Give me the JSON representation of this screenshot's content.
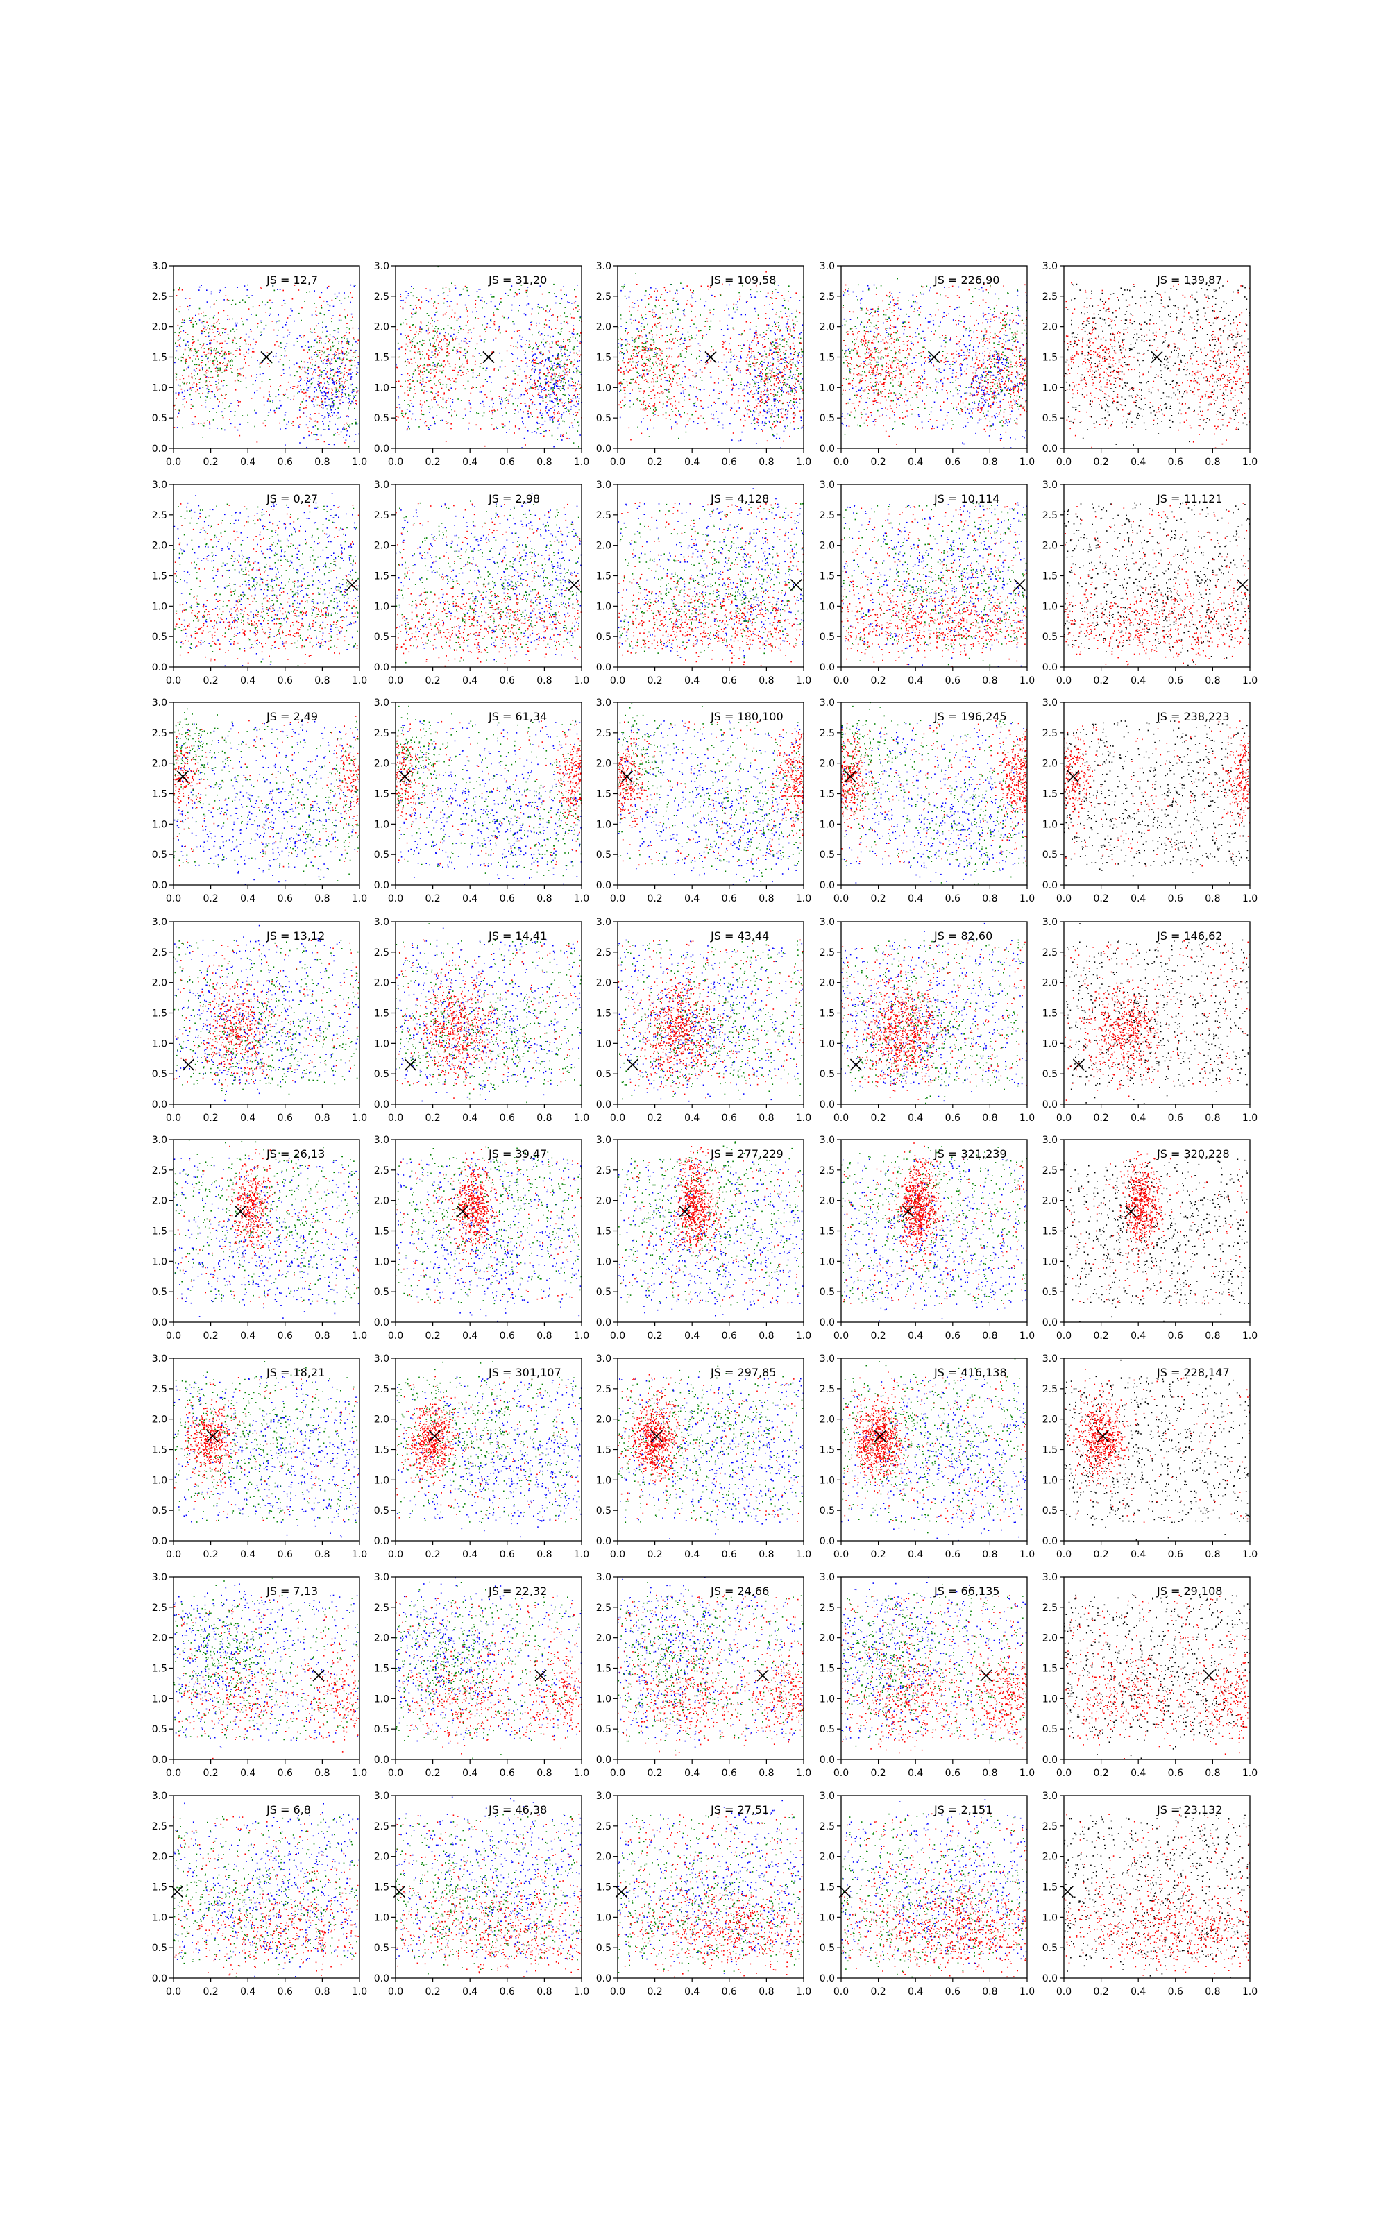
{
  "chart_data": {
    "type": "scatter",
    "layout": {
      "rows": 8,
      "cols": 5
    },
    "xlim": [
      0,
      1
    ],
    "ylim": [
      0,
      3
    ],
    "xticks": [
      "0.0",
      "0.2",
      "0.4",
      "0.6",
      "0.8",
      "1.0"
    ],
    "yticks": [
      "0.0",
      "0.5",
      "1.0",
      "1.5",
      "2.0",
      "2.5",
      "3.0"
    ],
    "colors": {
      "red": "#ff0000",
      "green": "#008000",
      "blue": "#0000ff",
      "black": "#000000"
    },
    "rows": [
      {
        "marker": [
          0.5,
          1.5
        ],
        "labels": [
          "JS = 12,7",
          "JS = 31,20",
          "JS = 109,58",
          "JS = 226,90",
          "JS = 139,87"
        ],
        "series": [
          {
            "color": "red",
            "clusters": [
              {
                "cx": 0.2,
                "cy": 1.4,
                "sx": 0.12,
                "sy": 0.45
              },
              {
                "cx": 0.85,
                "cy": 1.2,
                "sx": 0.12,
                "sy": 0.45
              }
            ],
            "uniform": 0.3
          },
          {
            "color": "green",
            "clusters": [
              {
                "cx": 0.18,
                "cy": 1.5,
                "sx": 0.13,
                "sy": 0.5
              },
              {
                "cx": 0.9,
                "cy": 1.3,
                "sx": 0.1,
                "sy": 0.5
              }
            ],
            "uniform": 0.3
          },
          {
            "color": "blue",
            "clusters": [
              {
                "cx": 0.85,
                "cy": 1.0,
                "sx": 0.12,
                "sy": 0.5
              }
            ],
            "uniform": 0.5
          }
        ]
      },
      {
        "marker": [
          0.96,
          1.35
        ],
        "labels": [
          "JS = 0,27",
          "JS = 2,98",
          "JS = 4,128",
          "JS = 10,114",
          "JS = 11,121"
        ],
        "series": [
          {
            "color": "red",
            "clusters": [
              {
                "cx": 0.5,
                "cy": 0.7,
                "sx": 0.35,
                "sy": 0.3
              }
            ],
            "uniform": 0.3
          },
          {
            "color": "green",
            "clusters": [
              {
                "cx": 0.6,
                "cy": 1.2,
                "sx": 0.3,
                "sy": 0.5
              }
            ],
            "uniform": 0.4
          },
          {
            "color": "blue",
            "clusters": [
              {
                "cx": 0.7,
                "cy": 1.4,
                "sx": 0.3,
                "sy": 0.6
              }
            ],
            "uniform": 0.5
          }
        ]
      },
      {
        "marker": [
          0.05,
          1.78
        ],
        "labels": [
          "JS = 2,49",
          "JS = 61,34",
          "JS = 180,100",
          "JS = 196,245",
          "JS = 238,223"
        ],
        "series": [
          {
            "color": "red",
            "clusters": [
              {
                "cx": 0.03,
                "cy": 1.75,
                "sx": 0.06,
                "sy": 0.35
              },
              {
                "cx": 0.97,
                "cy": 1.75,
                "sx": 0.06,
                "sy": 0.35
              }
            ],
            "uniform": 0.2
          },
          {
            "color": "green",
            "clusters": [
              {
                "cx": 0.1,
                "cy": 2.1,
                "sx": 0.1,
                "sy": 0.4
              },
              {
                "cx": 0.8,
                "cy": 1.0,
                "sx": 0.2,
                "sy": 0.5
              }
            ],
            "uniform": 0.4
          },
          {
            "color": "blue",
            "clusters": [
              {
                "cx": 0.55,
                "cy": 1.0,
                "sx": 0.25,
                "sy": 0.5
              }
            ],
            "uniform": 0.5
          }
        ]
      },
      {
        "marker": [
          0.08,
          0.65
        ],
        "labels": [
          "JS = 13,12",
          "JS = 14,41",
          "JS = 43,44",
          "JS = 82,60",
          "JS = 146,62"
        ],
        "series": [
          {
            "color": "red",
            "clusters": [
              {
                "cx": 0.33,
                "cy": 1.2,
                "sx": 0.1,
                "sy": 0.4
              }
            ],
            "uniform": 0.25
          },
          {
            "color": "green",
            "clusters": [
              {
                "cx": 0.45,
                "cy": 1.1,
                "sx": 0.25,
                "sy": 0.5
              }
            ],
            "uniform": 0.5
          },
          {
            "color": "blue",
            "clusters": [
              {
                "cx": 0.4,
                "cy": 1.3,
                "sx": 0.2,
                "sy": 0.6
              }
            ],
            "uniform": 0.5
          }
        ]
      },
      {
        "marker": [
          0.36,
          1.82
        ],
        "labels": [
          "JS = 26,13",
          "JS = 39,47",
          "JS = 277,229",
          "JS = 321,239",
          "JS = 320,228"
        ],
        "series": [
          {
            "color": "red",
            "clusters": [
              {
                "cx": 0.42,
                "cy": 1.9,
                "sx": 0.05,
                "sy": 0.35
              }
            ],
            "uniform": 0.2
          },
          {
            "color": "green",
            "clusters": [
              {
                "cx": 0.5,
                "cy": 1.9,
                "sx": 0.3,
                "sy": 0.6
              }
            ],
            "uniform": 0.5
          },
          {
            "color": "blue",
            "clusters": [
              {
                "cx": 0.5,
                "cy": 1.1,
                "sx": 0.3,
                "sy": 0.5
              }
            ],
            "uniform": 0.5
          }
        ]
      },
      {
        "marker": [
          0.21,
          1.72
        ],
        "labels": [
          "JS = 18,21",
          "JS = 301,107",
          "JS = 297,85",
          "JS = 416,138",
          "JS = 228,147"
        ],
        "series": [
          {
            "color": "red",
            "clusters": [
              {
                "cx": 0.2,
                "cy": 1.65,
                "sx": 0.06,
                "sy": 0.3
              }
            ],
            "uniform": 0.2
          },
          {
            "color": "green",
            "clusters": [
              {
                "cx": 0.4,
                "cy": 1.8,
                "sx": 0.25,
                "sy": 0.5
              }
            ],
            "uniform": 0.5
          },
          {
            "color": "blue",
            "clusters": [
              {
                "cx": 0.7,
                "cy": 1.2,
                "sx": 0.25,
                "sy": 0.5
              }
            ],
            "uniform": 0.5
          }
        ]
      },
      {
        "marker": [
          0.78,
          1.38
        ],
        "labels": [
          "JS = 7,13",
          "JS = 22,32",
          "JS = 24,66",
          "JS = 66,135",
          "JS = 29,108"
        ],
        "series": [
          {
            "color": "red",
            "clusters": [
              {
                "cx": 0.35,
                "cy": 1.0,
                "sx": 0.15,
                "sy": 0.35
              },
              {
                "cx": 0.9,
                "cy": 1.05,
                "sx": 0.1,
                "sy": 0.35
              }
            ],
            "uniform": 0.3
          },
          {
            "color": "green",
            "clusters": [
              {
                "cx": 0.3,
                "cy": 1.6,
                "sx": 0.15,
                "sy": 0.5
              }
            ],
            "uniform": 0.5
          },
          {
            "color": "blue",
            "clusters": [
              {
                "cx": 0.25,
                "cy": 1.8,
                "sx": 0.2,
                "sy": 0.6
              }
            ],
            "uniform": 0.5
          }
        ]
      },
      {
        "marker": [
          0.02,
          1.42
        ],
        "labels": [
          "JS = 6,8",
          "JS = 46,38",
          "JS = 27,51",
          "JS = 2,151",
          "JS = 23,132"
        ],
        "series": [
          {
            "color": "red",
            "clusters": [
              {
                "cx": 0.6,
                "cy": 0.8,
                "sx": 0.3,
                "sy": 0.35
              }
            ],
            "uniform": 0.3
          },
          {
            "color": "green",
            "clusters": [
              {
                "cx": 0.4,
                "cy": 1.1,
                "sx": 0.3,
                "sy": 0.5
              }
            ],
            "uniform": 0.5
          },
          {
            "color": "blue",
            "clusters": [
              {
                "cx": 0.6,
                "cy": 1.4,
                "sx": 0.25,
                "sy": 0.6
              }
            ],
            "uniform": 0.5
          }
        ]
      }
    ]
  }
}
